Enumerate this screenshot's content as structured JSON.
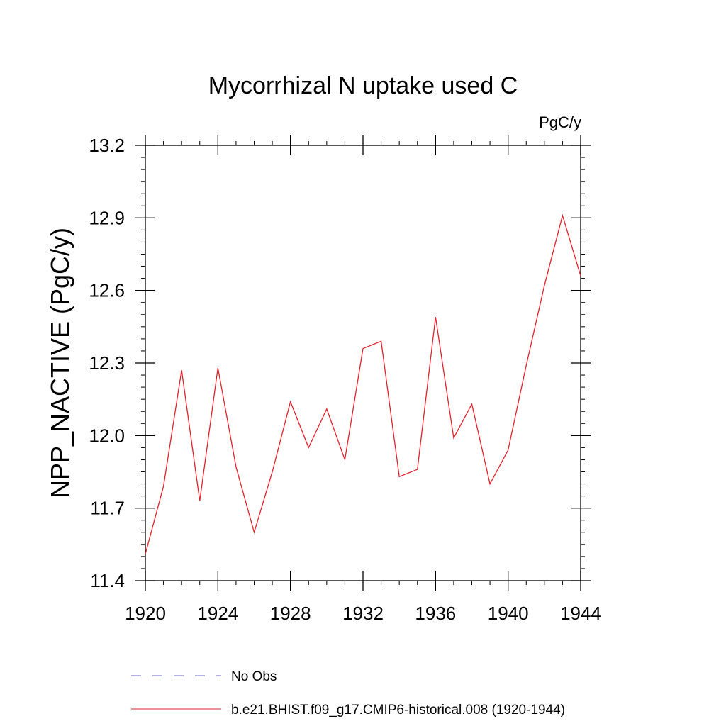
{
  "chart_data": {
    "type": "line",
    "title": "Mycorrhizal N uptake used C",
    "units_label": "PgC/y",
    "ylabel": "NPP_NACTIVE  (PgC/y)",
    "xlabel": "",
    "xlim": [
      1920,
      1944
    ],
    "ylim": [
      11.4,
      13.2
    ],
    "x_ticks": [
      1920,
      1924,
      1928,
      1932,
      1936,
      1940,
      1944
    ],
    "x_tick_labels": [
      "1920",
      "1924",
      "1928",
      "1932",
      "1936",
      "1940",
      "1944"
    ],
    "y_ticks": [
      11.4,
      11.7,
      12.0,
      12.3,
      12.6,
      12.9,
      13.2
    ],
    "y_tick_labels": [
      "11.4",
      "11.7",
      "12.0",
      "12.3",
      "12.6",
      "12.9",
      "13.2"
    ],
    "grid": false,
    "legend_position": "bottom",
    "series": [
      {
        "name": "No Obs",
        "color": "#6a6acd",
        "style": "dashed",
        "x": [],
        "y": []
      },
      {
        "name": "b.e21.BHIST.f09_g17.CMIP6-historical.008 (1920-1944)",
        "color": "#e8202a",
        "style": "solid",
        "x": [
          1920,
          1921,
          1922,
          1923,
          1924,
          1925,
          1926,
          1927,
          1928,
          1929,
          1930,
          1931,
          1932,
          1933,
          1934,
          1935,
          1936,
          1937,
          1938,
          1939,
          1940,
          1941,
          1942,
          1943,
          1944
        ],
        "y": [
          11.51,
          11.79,
          12.27,
          11.73,
          12.28,
          11.87,
          11.6,
          11.85,
          12.14,
          11.95,
          12.11,
          11.9,
          12.36,
          12.39,
          11.83,
          11.86,
          12.49,
          11.99,
          12.13,
          11.8,
          11.94,
          12.29,
          12.62,
          12.91,
          12.66
        ]
      }
    ]
  }
}
